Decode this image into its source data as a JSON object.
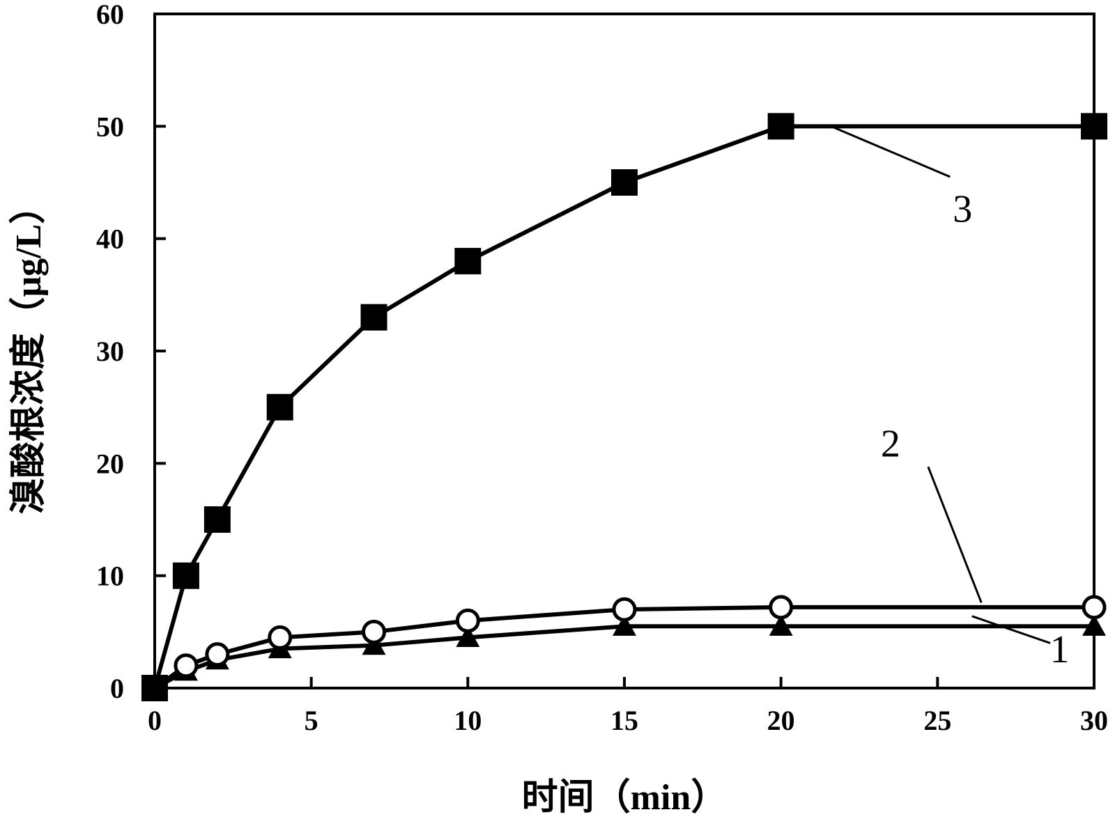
{
  "chart_data": {
    "type": "line",
    "title": "",
    "xlabel": "时间（min）",
    "ylabel": "溴酸根浓度（μg/L）",
    "xlim": [
      0,
      30
    ],
    "ylim": [
      0,
      60
    ],
    "xticks": [
      0,
      5,
      10,
      15,
      20,
      25,
      30
    ],
    "yticks": [
      0,
      10,
      20,
      30,
      40,
      50,
      60
    ],
    "xtick_labels": [
      "0",
      "5",
      "10",
      "15",
      "20",
      "25",
      "30"
    ],
    "ytick_labels": [
      "0",
      "10",
      "20",
      "30",
      "40",
      "50",
      "60"
    ],
    "grid": false,
    "legend": "none",
    "series": [
      {
        "label": "1",
        "marker": "triangle-filled",
        "color": "#000000",
        "x": [
          0,
          1,
          2,
          4,
          7,
          10,
          15,
          20,
          30
        ],
        "y": [
          0,
          1.5,
          2.5,
          3.5,
          3.8,
          4.5,
          5.5,
          5.5,
          5.5
        ]
      },
      {
        "label": "2",
        "marker": "circle-open",
        "color": "#000000",
        "x": [
          0,
          1,
          2,
          4,
          7,
          10,
          15,
          20,
          30
        ],
        "y": [
          0,
          2.0,
          3.0,
          4.5,
          5.0,
          6.0,
          7.0,
          7.2,
          7.2
        ]
      },
      {
        "label": "3",
        "marker": "square-filled",
        "color": "#000000",
        "x": [
          0,
          1,
          2,
          4,
          7,
          10,
          15,
          20,
          30
        ],
        "y": [
          0,
          10,
          15,
          25,
          33,
          38,
          45,
          50,
          50
        ]
      }
    ]
  }
}
